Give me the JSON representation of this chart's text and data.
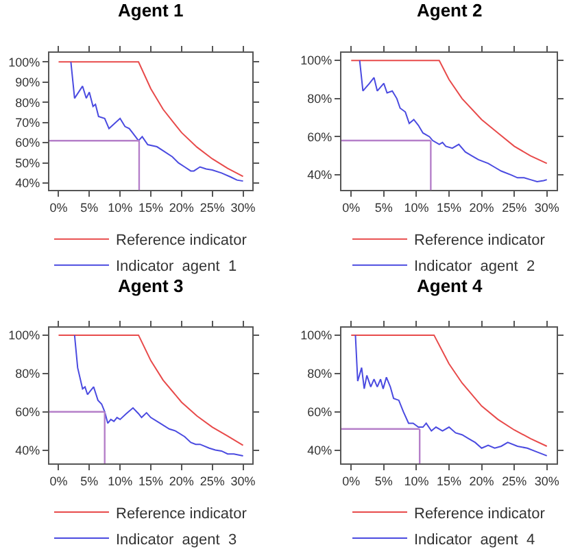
{
  "chart_data": [
    {
      "type": "line",
      "title": "Agent 1",
      "legend": "bottom",
      "xlim": [
        -1.5,
        31.5
      ],
      "ylim": [
        36.5,
        104.5
      ],
      "xticks": [
        {
          "value": 0,
          "label": "0%"
        },
        {
          "value": 5,
          "label": "5%"
        },
        {
          "value": 10,
          "label": "10%"
        },
        {
          "value": 15,
          "label": "15%"
        },
        {
          "value": 20,
          "label": "20%"
        },
        {
          "value": 25,
          "label": "25%"
        },
        {
          "value": 30,
          "label": "30%"
        }
      ],
      "yticks": [
        {
          "value": 40,
          "label": "40%"
        },
        {
          "value": 50,
          "label": "50%"
        },
        {
          "value": 60,
          "label": "60%"
        },
        {
          "value": 70,
          "label": "70%"
        },
        {
          "value": 80,
          "label": "80%"
        },
        {
          "value": 90,
          "label": "90%"
        },
        {
          "value": 100,
          "label": "100%"
        }
      ],
      "series": [
        {
          "name": "Reference indicator",
          "color": "#e84a4a",
          "x": [
            0,
            13,
            15,
            17,
            20,
            22.5,
            25,
            27.5,
            30
          ],
          "values": [
            100,
            100,
            86.7,
            76.5,
            65,
            57.8,
            52,
            47.3,
            43.3
          ]
        },
        {
          "name": "Indicator  agent  1",
          "color": "#4a4ae0",
          "x": [
            2,
            2.6,
            3.9,
            4.5,
            5,
            5.6,
            6,
            6.5,
            7.5,
            8.2,
            10,
            10.8,
            11.5,
            12,
            13,
            13.6,
            14.5,
            16,
            17,
            18.5,
            19.5,
            20.5,
            21.5,
            22,
            23,
            24,
            25,
            26.5,
            28,
            29,
            30
          ],
          "values": [
            100,
            82,
            88,
            82,
            85,
            78,
            79,
            73,
            72,
            67,
            72,
            68,
            67,
            65,
            61,
            63,
            59,
            58,
            56,
            53,
            50,
            48,
            46,
            46,
            48,
            47,
            46.5,
            45,
            43,
            41.5,
            41
          ]
        }
      ],
      "ref_lines": [
        {
          "axis": "y",
          "value": 61,
          "color": "#b57fc9"
        },
        {
          "axis": "x",
          "value": 13.1,
          "color": "#b57fc9"
        }
      ]
    },
    {
      "type": "line",
      "title": "Agent 2",
      "legend": "bottom",
      "xlim": [
        -1.5,
        31.5
      ],
      "ylim": [
        32,
        104
      ],
      "xticks": [
        {
          "value": 0,
          "label": "0%"
        },
        {
          "value": 5,
          "label": "5%"
        },
        {
          "value": 10,
          "label": "10%"
        },
        {
          "value": 15,
          "label": "15%"
        },
        {
          "value": 20,
          "label": "20%"
        },
        {
          "value": 25,
          "label": "25%"
        },
        {
          "value": 30,
          "label": "30%"
        }
      ],
      "yticks": [
        {
          "value": 40,
          "label": "40%"
        },
        {
          "value": 60,
          "label": "60%"
        },
        {
          "value": 80,
          "label": "80%"
        },
        {
          "value": 100,
          "label": "100%"
        }
      ],
      "series": [
        {
          "name": "Reference indicator",
          "color": "#e84a4a",
          "x": [
            0,
            13.5,
            15,
            17,
            20,
            22.5,
            25,
            27.5,
            30
          ],
          "values": [
            100,
            100,
            90,
            80,
            69,
            62,
            55,
            50,
            46
          ]
        },
        {
          "name": "Indicator  agent  2",
          "color": "#4a4ae0",
          "x": [
            1.3,
            1.8,
            2.8,
            3.5,
            4,
            5,
            5.5,
            6.3,
            7,
            7.5,
            8.3,
            8.9,
            9.6,
            10.3,
            11,
            12,
            12.5,
            13.5,
            14,
            14.5,
            15.5,
            16.5,
            17.5,
            18.5,
            19.5,
            21,
            22,
            23,
            24.5,
            25.5,
            26.5,
            27.5,
            28.5,
            29.5,
            30
          ],
          "values": [
            100,
            84,
            88,
            91,
            84,
            88,
            83,
            84,
            80,
            75,
            73,
            67,
            69,
            66,
            62,
            60,
            58,
            56,
            57,
            55,
            54,
            56,
            52,
            50,
            48,
            46,
            44,
            42,
            40,
            38.5,
            38.5,
            37.5,
            36.5,
            37,
            37.5
          ]
        }
      ],
      "ref_lines": [
        {
          "axis": "y",
          "value": 58,
          "color": "#b57fc9"
        },
        {
          "axis": "x",
          "value": 12.2,
          "color": "#b57fc9"
        }
      ]
    },
    {
      "type": "line",
      "title": "Agent 3",
      "legend": "bottom",
      "xlim": [
        -1.5,
        31.5
      ],
      "ylim": [
        33,
        104
      ],
      "xticks": [
        {
          "value": 0,
          "label": "0%"
        },
        {
          "value": 5,
          "label": "5%"
        },
        {
          "value": 10,
          "label": "10%"
        },
        {
          "value": 15,
          "label": "15%"
        },
        {
          "value": 20,
          "label": "20%"
        },
        {
          "value": 25,
          "label": "25%"
        },
        {
          "value": 30,
          "label": "30%"
        }
      ],
      "yticks": [
        {
          "value": 40,
          "label": "40%"
        },
        {
          "value": 60,
          "label": "60%"
        },
        {
          "value": 80,
          "label": "80%"
        },
        {
          "value": 100,
          "label": "100%"
        }
      ],
      "series": [
        {
          "name": "Reference indicator",
          "color": "#e84a4a",
          "x": [
            0,
            13,
            15,
            17,
            20,
            22.5,
            25,
            27.5,
            30
          ],
          "values": [
            100,
            100,
            86.7,
            76.5,
            65,
            57.8,
            52,
            47.3,
            42.5
          ]
        },
        {
          "name": "Indicator  agent  3",
          "color": "#4a4ae0",
          "x": [
            2.6,
            3.1,
            3.9,
            4.3,
            4.7,
            5.2,
            5.7,
            6,
            6.4,
            7,
            7.5,
            8,
            8.5,
            9,
            9.5,
            10,
            11,
            12.1,
            13,
            13.5,
            14.3,
            15,
            16.5,
            18,
            19,
            20.5,
            21.5,
            22.3,
            23,
            24.5,
            25.5,
            26.5,
            27.5,
            28.5,
            30
          ],
          "values": [
            100,
            83,
            72,
            73,
            69,
            71,
            73,
            70,
            66,
            64,
            60,
            54,
            56,
            55,
            57,
            56,
            59,
            62,
            59,
            57,
            59.5,
            57,
            54,
            51,
            50,
            47,
            44,
            43,
            43,
            41,
            40,
            39.5,
            38,
            38,
            37
          ]
        }
      ],
      "ref_lines": [
        {
          "axis": "y",
          "value": 60,
          "color": "#b57fc9"
        },
        {
          "axis": "x",
          "value": 7.5,
          "color": "#b57fc9"
        }
      ]
    },
    {
      "type": "line",
      "title": "Agent 4",
      "legend": "bottom",
      "xlim": [
        -1.5,
        31.5
      ],
      "ylim": [
        33,
        104
      ],
      "xticks": [
        {
          "value": 0,
          "label": "0%"
        },
        {
          "value": 5,
          "label": "5%"
        },
        {
          "value": 10,
          "label": "10%"
        },
        {
          "value": 15,
          "label": "15%"
        },
        {
          "value": 20,
          "label": "20%"
        },
        {
          "value": 25,
          "label": "25%"
        },
        {
          "value": 30,
          "label": "30%"
        }
      ],
      "yticks": [
        {
          "value": 40,
          "label": "40%"
        },
        {
          "value": 60,
          "label": "60%"
        },
        {
          "value": 80,
          "label": "80%"
        },
        {
          "value": 100,
          "label": "100%"
        }
      ],
      "series": [
        {
          "name": "Reference indicator",
          "color": "#e84a4a",
          "x": [
            0,
            12.7,
            15,
            17,
            20,
            22.5,
            25,
            27.5,
            30
          ],
          "values": [
            100,
            100,
            85,
            75,
            63,
            56,
            50.5,
            46,
            42
          ]
        },
        {
          "name": "Indicator  agent  4",
          "color": "#4a4ae0",
          "x": [
            0.65,
            1,
            1.6,
            2,
            2.4,
            3,
            3.5,
            4,
            4.5,
            4.9,
            5.4,
            6,
            6.5,
            7.3,
            8,
            8.8,
            9.5,
            10.3,
            11,
            11.5,
            12.3,
            13,
            14,
            15,
            16,
            17,
            18,
            19,
            20,
            21,
            22,
            23,
            24,
            25.5,
            27,
            28.5,
            30
          ],
          "values": [
            100,
            76,
            83,
            72,
            79,
            73,
            77,
            73,
            77,
            72,
            78,
            73,
            67,
            66,
            60,
            54,
            54,
            52,
            52,
            54,
            50,
            52,
            50,
            52,
            49,
            48,
            46,
            44,
            41,
            42.5,
            41,
            42,
            44,
            42,
            41,
            39,
            37
          ]
        }
      ],
      "ref_lines": [
        {
          "axis": "y",
          "value": 51,
          "color": "#b57fc9"
        },
        {
          "axis": "x",
          "value": 10.5,
          "color": "#b57fc9"
        }
      ]
    }
  ]
}
